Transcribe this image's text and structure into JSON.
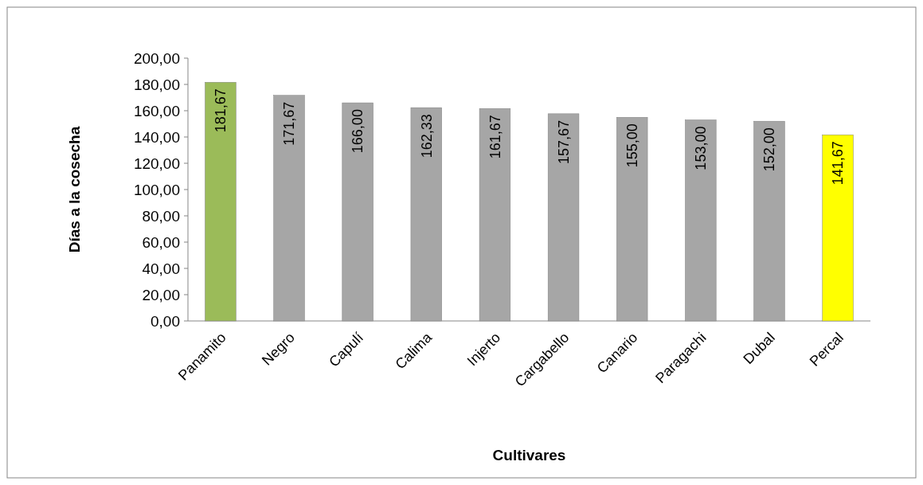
{
  "chart_data": {
    "type": "bar",
    "xlabel": "Cultivares",
    "ylabel": "Días a la cosecha",
    "categories": [
      "Panamito",
      "Negro",
      "Capulí",
      "Calima",
      "Injerto",
      "Cargabello",
      "Canario",
      "Paragachi",
      "Dubal",
      "Percal"
    ],
    "values": [
      181.67,
      171.67,
      166.0,
      162.33,
      161.67,
      157.67,
      155.0,
      153.0,
      152.0,
      141.67
    ],
    "colors": [
      "#9bbb59",
      "#a6a6a6",
      "#a6a6a6",
      "#a6a6a6",
      "#a6a6a6",
      "#a6a6a6",
      "#a6a6a6",
      "#a6a6a6",
      "#a6a6a6",
      "#ffff00"
    ],
    "value_labels": [
      "181,67",
      "171,67",
      "166,00",
      "162,33",
      "161,67",
      "157,67",
      "155,00",
      "153,00",
      "152,00",
      "141,67"
    ],
    "ylim": [
      0,
      200
    ],
    "yticks": [
      {
        "value": 0,
        "label": "0,00"
      },
      {
        "value": 20,
        "label": "20,00"
      },
      {
        "value": 40,
        "label": "40,00"
      },
      {
        "value": 60,
        "label": "60,00"
      },
      {
        "value": 80,
        "label": "80,00"
      },
      {
        "value": 100,
        "label": "100,00"
      },
      {
        "value": 120,
        "label": "120,00"
      },
      {
        "value": 140,
        "label": "140,00"
      },
      {
        "value": 160,
        "label": "160,00"
      },
      {
        "value": 180,
        "label": "180,00"
      },
      {
        "value": 200,
        "label": "200,00"
      }
    ],
    "grid": false
  }
}
